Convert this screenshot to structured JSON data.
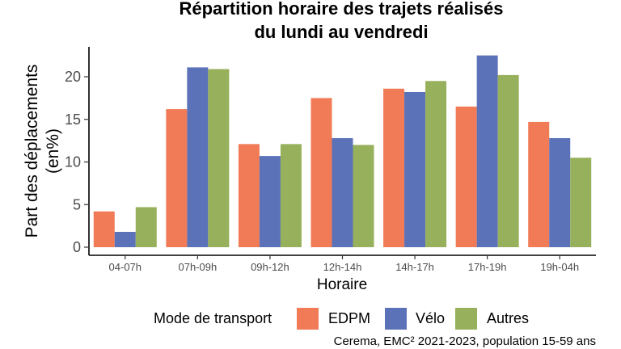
{
  "chart_data": {
    "type": "bar",
    "title": "Répartition horaire des trajets réalisés",
    "title_line2": "du lundi au vendredi",
    "xlabel": "Horaire",
    "ylabel_line1": "Part des déplacements",
    "ylabel_line2": "(en%)",
    "categories": [
      "04-07h",
      "07h-09h",
      "09h-12h",
      "12h-14h",
      "14h-17h",
      "17h-19h",
      "19h-04h"
    ],
    "series": [
      {
        "name": "EDPM",
        "color": "#f07b56",
        "values": [
          4.2,
          16.2,
          12.1,
          17.5,
          18.6,
          16.5,
          14.7
        ]
      },
      {
        "name": "Vélo",
        "color": "#5c72b8",
        "values": [
          1.8,
          21.1,
          10.7,
          12.8,
          18.2,
          22.5,
          12.8
        ]
      },
      {
        "name": "Autres",
        "color": "#97b05b",
        "values": [
          4.7,
          20.9,
          12.1,
          12.0,
          19.5,
          20.2,
          10.5
        ]
      }
    ],
    "yticks": [
      0,
      5,
      10,
      15,
      20
    ],
    "ylim": [
      0,
      23
    ],
    "grid": false,
    "legend_title": "Mode de transport",
    "legend_position": "bottom",
    "caption": "Cerema, EMC² 2021-2023, population 15-59 ans"
  }
}
